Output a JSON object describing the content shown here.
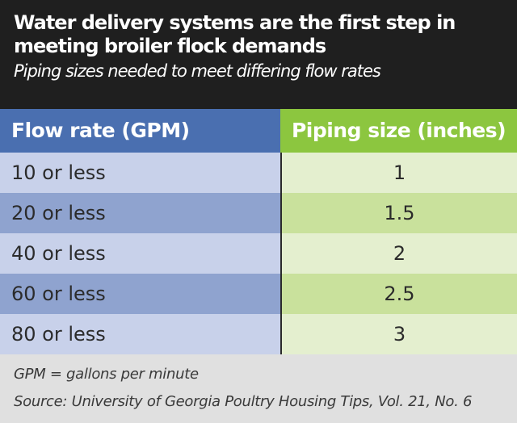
{
  "header": {
    "title": "Water delivery systems are the first step in meeting broiler flock demands",
    "subtitle": "Piping sizes needed to meet differing flow rates"
  },
  "table": {
    "columns": [
      "Flow rate (GPM)",
      "Piping size (inches)"
    ],
    "rows": [
      [
        "10 or less",
        "1"
      ],
      [
        "20 or less",
        "1.5"
      ],
      [
        "40 or less",
        "2"
      ],
      [
        "60 or less",
        "2.5"
      ],
      [
        "80 or less",
        "3"
      ]
    ]
  },
  "footer": {
    "note": "GPM = gallons per minute",
    "source": "Source: University of Georgia Poultry Housing Tips, Vol. 21, No. 6"
  },
  "colors": {
    "header_bg": "#1f1f1f",
    "flow_header": "#4a6fb0",
    "pipe_header": "#8cc63f",
    "flow_light": "#c8d1ea",
    "flow_dark": "#8fa3cf",
    "pipe_light": "#e4efcf",
    "pipe_dark": "#c9e19c",
    "footer_bg": "#e0e0e0"
  }
}
